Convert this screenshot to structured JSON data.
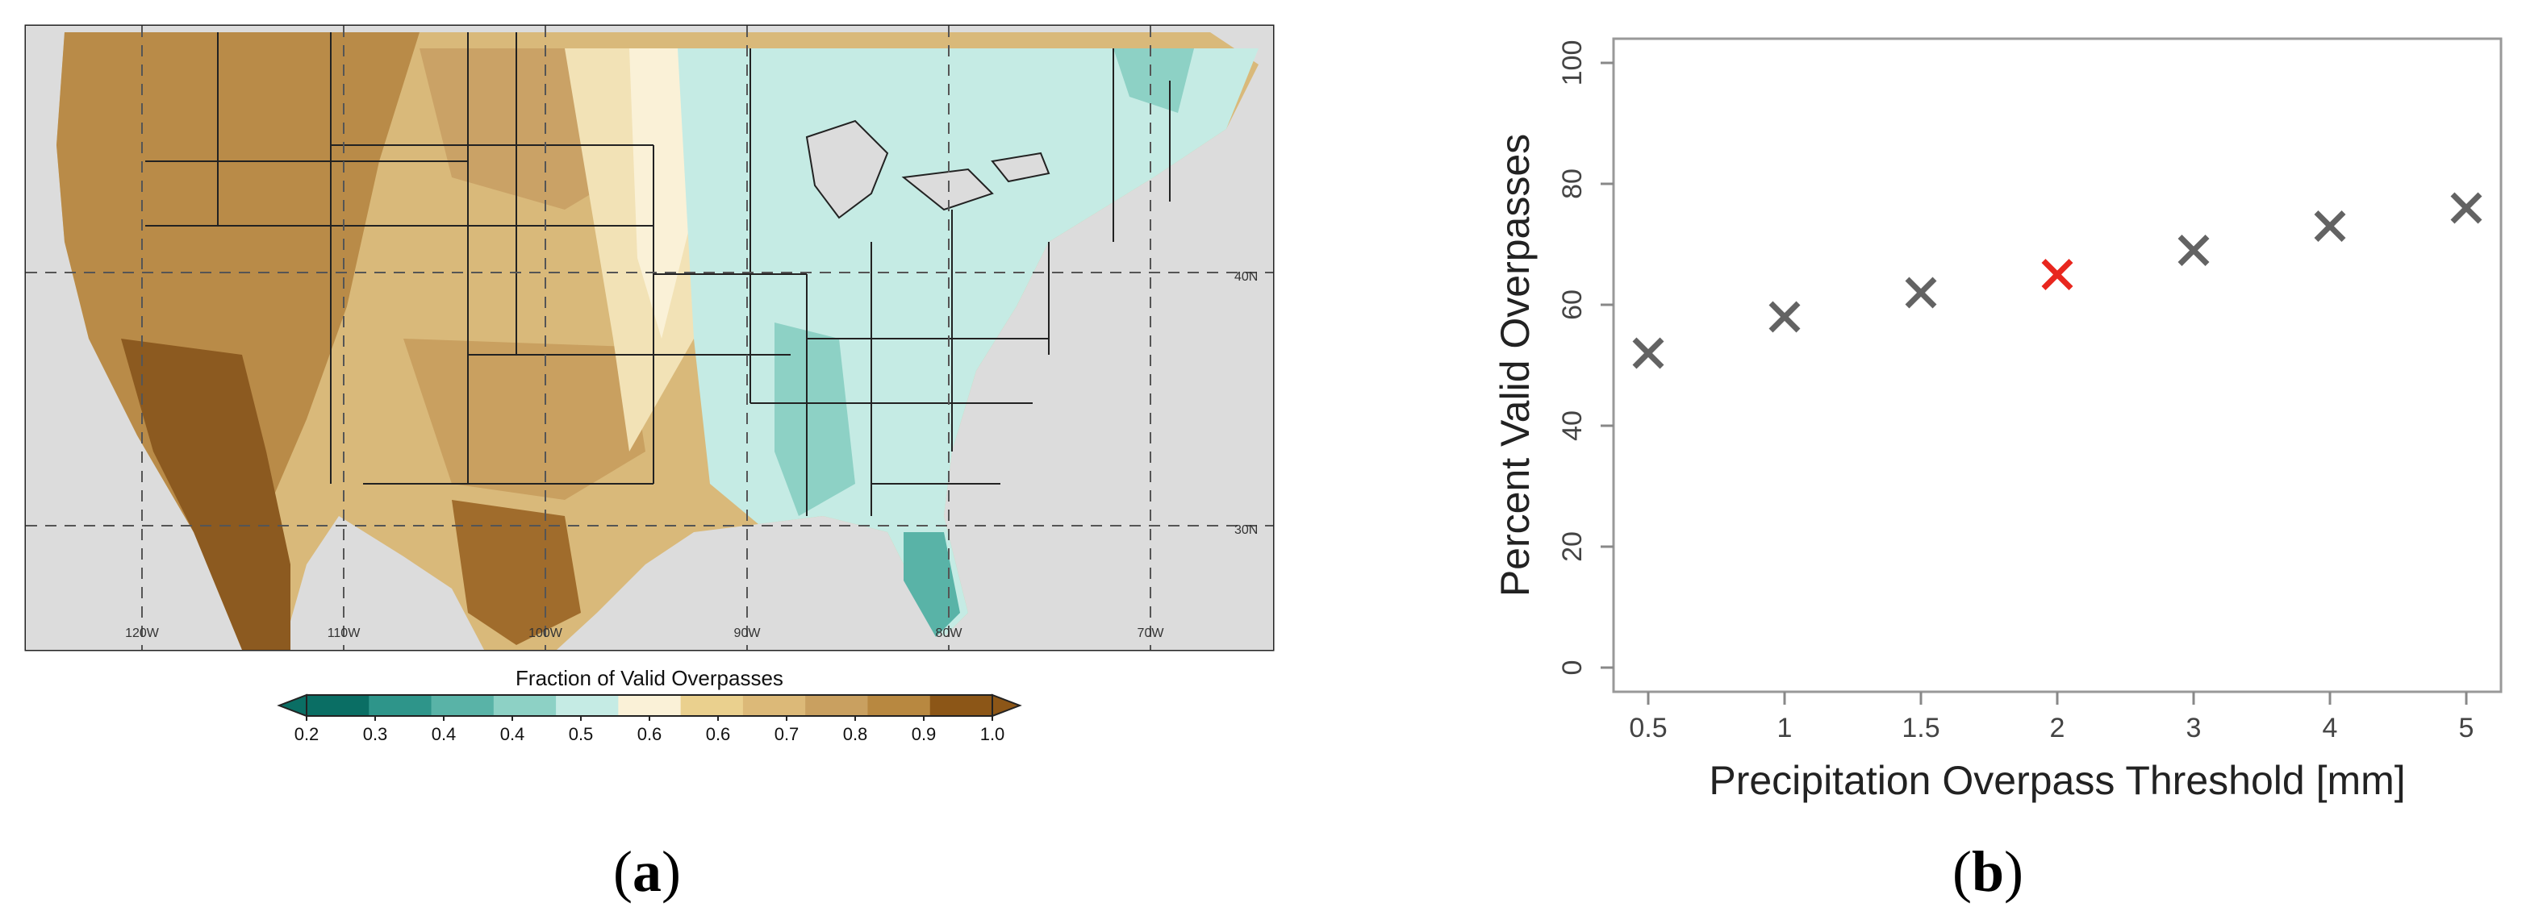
{
  "panel_a": {
    "label": "a",
    "colorbar_title": "Fraction of Valid Overpasses",
    "colorbar_ticks": [
      "0.2",
      "0.3",
      "0.4",
      "0.4",
      "0.5",
      "0.6",
      "0.6",
      "0.7",
      "0.8",
      "0.9",
      "1.0"
    ],
    "colorbar_colors": [
      "#0a6e64",
      "#2e958a",
      "#59b3a7",
      "#8dd1c5",
      "#c5ebe4",
      "#faf1d7",
      "#ead08e",
      "#dcb978",
      "#c9a060",
      "#b88840",
      "#8c5617"
    ],
    "lon_labels": [
      "120W",
      "110W",
      "100W",
      "90W",
      "80W",
      "70W"
    ],
    "lat_labels": [
      "40N",
      "30N"
    ]
  },
  "panel_b": {
    "label": "b"
  },
  "chart_data": {
    "type": "scatter",
    "title": "",
    "xlabel": "Precipitation Overpass Threshold [mm]",
    "ylabel": "Percent Valid Overpasses",
    "x": [
      "0.5",
      "1",
      "1.5",
      "2",
      "3",
      "4",
      "5"
    ],
    "values": [
      52,
      58,
      62,
      65,
      69,
      73,
      76
    ],
    "highlight_index": 3,
    "marker_color": "#636363",
    "highlight_color": "#e8261e",
    "ylim": [
      0,
      100
    ],
    "yticks": [
      "0",
      "20",
      "40",
      "60",
      "80",
      "100"
    ],
    "grid": false
  }
}
